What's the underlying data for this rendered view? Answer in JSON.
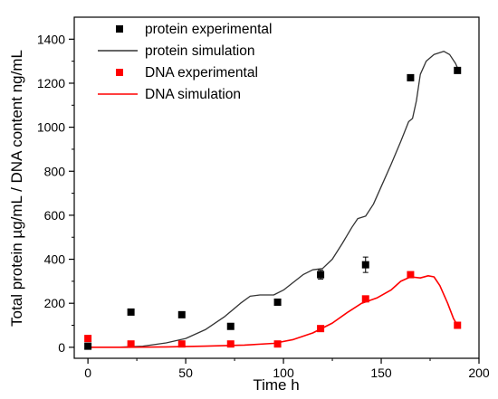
{
  "chart_data": {
    "type": "scatter",
    "xlabel": "Time h",
    "ylabel": "Total protein µg/mL / DNA content ng/mL",
    "xlim": [
      -7,
      200
    ],
    "ylim": [
      -50,
      1500
    ],
    "x_ticks": [
      0,
      50,
      100,
      150,
      200
    ],
    "y_ticks": [
      0,
      200,
      400,
      600,
      800,
      1000,
      1200,
      1400
    ],
    "legend_position": "top-left",
    "grid": false,
    "series": [
      {
        "name": "protein experimental",
        "kind": "scatter",
        "color": "#000000",
        "points": [
          {
            "x": 0,
            "y": 5
          },
          {
            "x": 22,
            "y": 160
          },
          {
            "x": 48,
            "y": 148
          },
          {
            "x": 73,
            "y": 95
          },
          {
            "x": 97,
            "y": 205
          },
          {
            "x": 119,
            "y": 330,
            "err": 20
          },
          {
            "x": 142,
            "y": 375,
            "err": 35
          },
          {
            "x": 165,
            "y": 1225
          },
          {
            "x": 189,
            "y": 1258
          }
        ]
      },
      {
        "name": "protein simulation",
        "kind": "line",
        "color": "#333333",
        "points": [
          {
            "x": 0,
            "y": 0
          },
          {
            "x": 15,
            "y": 0
          },
          {
            "x": 28,
            "y": 5
          },
          {
            "x": 40,
            "y": 20
          },
          {
            "x": 50,
            "y": 40
          },
          {
            "x": 60,
            "y": 80
          },
          {
            "x": 70,
            "y": 140
          },
          {
            "x": 78,
            "y": 200
          },
          {
            "x": 83,
            "y": 232
          },
          {
            "x": 88,
            "y": 238
          },
          {
            "x": 95,
            "y": 238
          },
          {
            "x": 100,
            "y": 260
          },
          {
            "x": 105,
            "y": 295
          },
          {
            "x": 110,
            "y": 330
          },
          {
            "x": 115,
            "y": 352
          },
          {
            "x": 120,
            "y": 358
          },
          {
            "x": 125,
            "y": 400
          },
          {
            "x": 130,
            "y": 470
          },
          {
            "x": 135,
            "y": 545
          },
          {
            "x": 138,
            "y": 585
          },
          {
            "x": 142,
            "y": 596
          },
          {
            "x": 146,
            "y": 650
          },
          {
            "x": 150,
            "y": 730
          },
          {
            "x": 155,
            "y": 830
          },
          {
            "x": 160,
            "y": 935
          },
          {
            "x": 164,
            "y": 1025
          },
          {
            "x": 166,
            "y": 1040
          },
          {
            "x": 168,
            "y": 1120
          },
          {
            "x": 170,
            "y": 1240
          },
          {
            "x": 173,
            "y": 1300
          },
          {
            "x": 177,
            "y": 1330
          },
          {
            "x": 182,
            "y": 1345
          },
          {
            "x": 185,
            "y": 1330
          },
          {
            "x": 188,
            "y": 1290
          },
          {
            "x": 190,
            "y": 1250
          }
        ]
      },
      {
        "name": "DNA experimental",
        "kind": "scatter",
        "color": "#ff0000",
        "points": [
          {
            "x": 0,
            "y": 40
          },
          {
            "x": 22,
            "y": 15
          },
          {
            "x": 48,
            "y": 15
          },
          {
            "x": 73,
            "y": 15
          },
          {
            "x": 97,
            "y": 15
          },
          {
            "x": 119,
            "y": 85
          },
          {
            "x": 142,
            "y": 220
          },
          {
            "x": 165,
            "y": 330
          },
          {
            "x": 189,
            "y": 100
          }
        ]
      },
      {
        "name": "DNA simulation",
        "kind": "line",
        "color": "#ff0000",
        "points": [
          {
            "x": 0,
            "y": 0
          },
          {
            "x": 20,
            "y": 0
          },
          {
            "x": 40,
            "y": 2
          },
          {
            "x": 60,
            "y": 5
          },
          {
            "x": 80,
            "y": 10
          },
          {
            "x": 95,
            "y": 18
          },
          {
            "x": 105,
            "y": 35
          },
          {
            "x": 115,
            "y": 65
          },
          {
            "x": 125,
            "y": 110
          },
          {
            "x": 133,
            "y": 160
          },
          {
            "x": 140,
            "y": 200
          },
          {
            "x": 148,
            "y": 225
          },
          {
            "x": 155,
            "y": 260
          },
          {
            "x": 160,
            "y": 300
          },
          {
            "x": 165,
            "y": 320
          },
          {
            "x": 170,
            "y": 315
          },
          {
            "x": 174,
            "y": 325
          },
          {
            "x": 177,
            "y": 320
          },
          {
            "x": 180,
            "y": 280
          },
          {
            "x": 184,
            "y": 200
          },
          {
            "x": 187,
            "y": 130
          },
          {
            "x": 189,
            "y": 100
          }
        ]
      }
    ]
  }
}
